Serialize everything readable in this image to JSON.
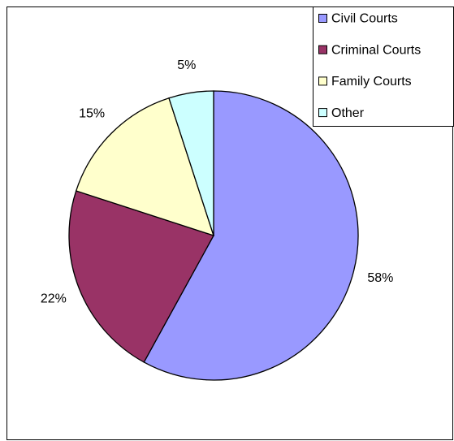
{
  "chart_data": {
    "type": "pie",
    "categories": [
      "Civil Courts",
      "Criminal Courts",
      "Family Courts",
      "Other"
    ],
    "values": [
      58,
      22,
      15,
      5
    ],
    "value_labels": [
      "58%",
      "22%",
      "15%",
      "5%"
    ],
    "colors": [
      "#9999ff",
      "#993366",
      "#ffffcc",
      "#ccffff"
    ],
    "legend": "top-right"
  }
}
